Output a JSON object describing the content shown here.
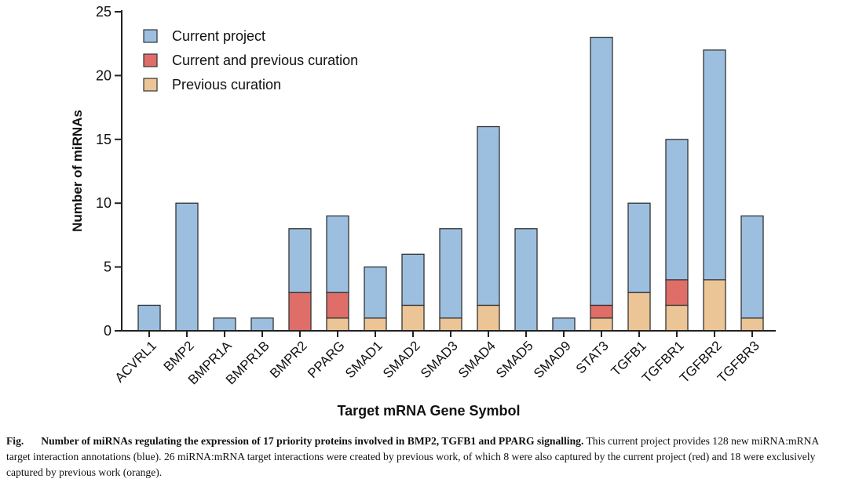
{
  "chart_data": {
    "type": "bar",
    "stacked": true,
    "title": "",
    "xlabel": "Target mRNA Gene Symbol",
    "ylabel": "Number of miRNAs",
    "ylim": [
      0,
      25
    ],
    "yticks": [
      0,
      5,
      10,
      15,
      20,
      25
    ],
    "grid": false,
    "legend_position": "top-left",
    "categories": [
      "ACVRL1",
      "BMP2",
      "BMPR1A",
      "BMPR1B",
      "BMPR2",
      "PPARG",
      "SMAD1",
      "SMAD2",
      "SMAD3",
      "SMAD4",
      "SMAD5",
      "SMAD9",
      "STAT3",
      "TGFB1",
      "TGFBR1",
      "TGFBR2",
      "TGFBR3"
    ],
    "series": [
      {
        "name": "Previous curation",
        "color": "#ecc596",
        "values": [
          0,
          0,
          0,
          0,
          0,
          1,
          1,
          2,
          1,
          2,
          0,
          0,
          1,
          3,
          2,
          4,
          1
        ]
      },
      {
        "name": "Current and previous curation",
        "color": "#df6e69",
        "values": [
          0,
          0,
          0,
          0,
          3,
          2,
          0,
          0,
          0,
          0,
          0,
          0,
          1,
          0,
          2,
          0,
          0
        ]
      },
      {
        "name": "Current project",
        "color": "#9cbfe0",
        "values": [
          2,
          10,
          1,
          1,
          5,
          6,
          4,
          4,
          7,
          14,
          8,
          1,
          21,
          7,
          11,
          18,
          8
        ]
      }
    ],
    "legend_order": [
      "Current project",
      "Current and previous curation",
      "Previous curation"
    ]
  },
  "caption": {
    "label": "Fig.",
    "bold_text": "Number of miRNAs regulating the expression of 17 priority proteins involved in BMP2, TGFB1 and PPARG signalling.",
    "text": " This current project provides 128 new miRNA:mRNA target interaction annotations (blue). 26 miRNA:mRNA target interactions were created by previous work, of which 8 were also captured by the current project (red) and 18 were exclusively captured by previous work (orange)."
  }
}
